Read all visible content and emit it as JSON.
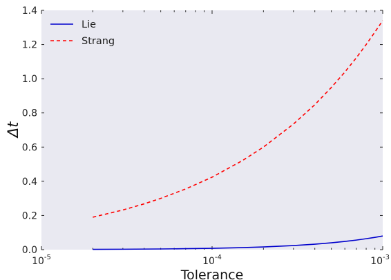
{
  "chart_data": {
    "type": "line",
    "title": "",
    "xlabel": "Tolerance",
    "ylabel": "Δt",
    "xscale": "log",
    "xlim": [
      1e-05,
      0.001
    ],
    "ylim": [
      0,
      1.4
    ],
    "grid": false,
    "background": "#e9e9f1",
    "x_ticks": [
      {
        "value": 1e-05,
        "base": "10",
        "exp": "-5"
      },
      {
        "value": 0.0001,
        "base": "10",
        "exp": "-4"
      },
      {
        "value": 0.001,
        "base": "10",
        "exp": "-3"
      }
    ],
    "y_ticks": [
      "0.0",
      "0.2",
      "0.4",
      "0.6",
      "0.8",
      "1.0",
      "1.2",
      "1.4"
    ],
    "legend": {
      "position": "top-left"
    },
    "series": [
      {
        "name": "Lie",
        "color": "#0000cc",
        "dash": "solid",
        "x": [
          2e-05,
          3e-05,
          5e-05,
          7e-05,
          0.0001,
          0.00015,
          0.0002,
          0.0003,
          0.0004,
          0.0005,
          0.0006,
          0.0007,
          0.0008,
          0.0009,
          0.001
        ],
        "y": [
          0.0017,
          0.0025,
          0.004,
          0.0056,
          0.008,
          0.012,
          0.016,
          0.024,
          0.032,
          0.04,
          0.048,
          0.056,
          0.064,
          0.072,
          0.08
        ]
      },
      {
        "name": "Strang",
        "color": "#ff0000",
        "dash": "dashed",
        "x": [
          2e-05,
          3e-05,
          4e-05,
          5e-05,
          7e-05,
          0.0001,
          0.00015,
          0.0002,
          0.0003,
          0.0004,
          0.0005,
          0.0006,
          0.0007,
          0.0008,
          0.0009,
          0.001
        ],
        "y": [
          0.19,
          0.232,
          0.268,
          0.3,
          0.355,
          0.424,
          0.52,
          0.6,
          0.735,
          0.848,
          0.949,
          1.039,
          1.122,
          1.2,
          1.273,
          1.34
        ]
      }
    ]
  }
}
